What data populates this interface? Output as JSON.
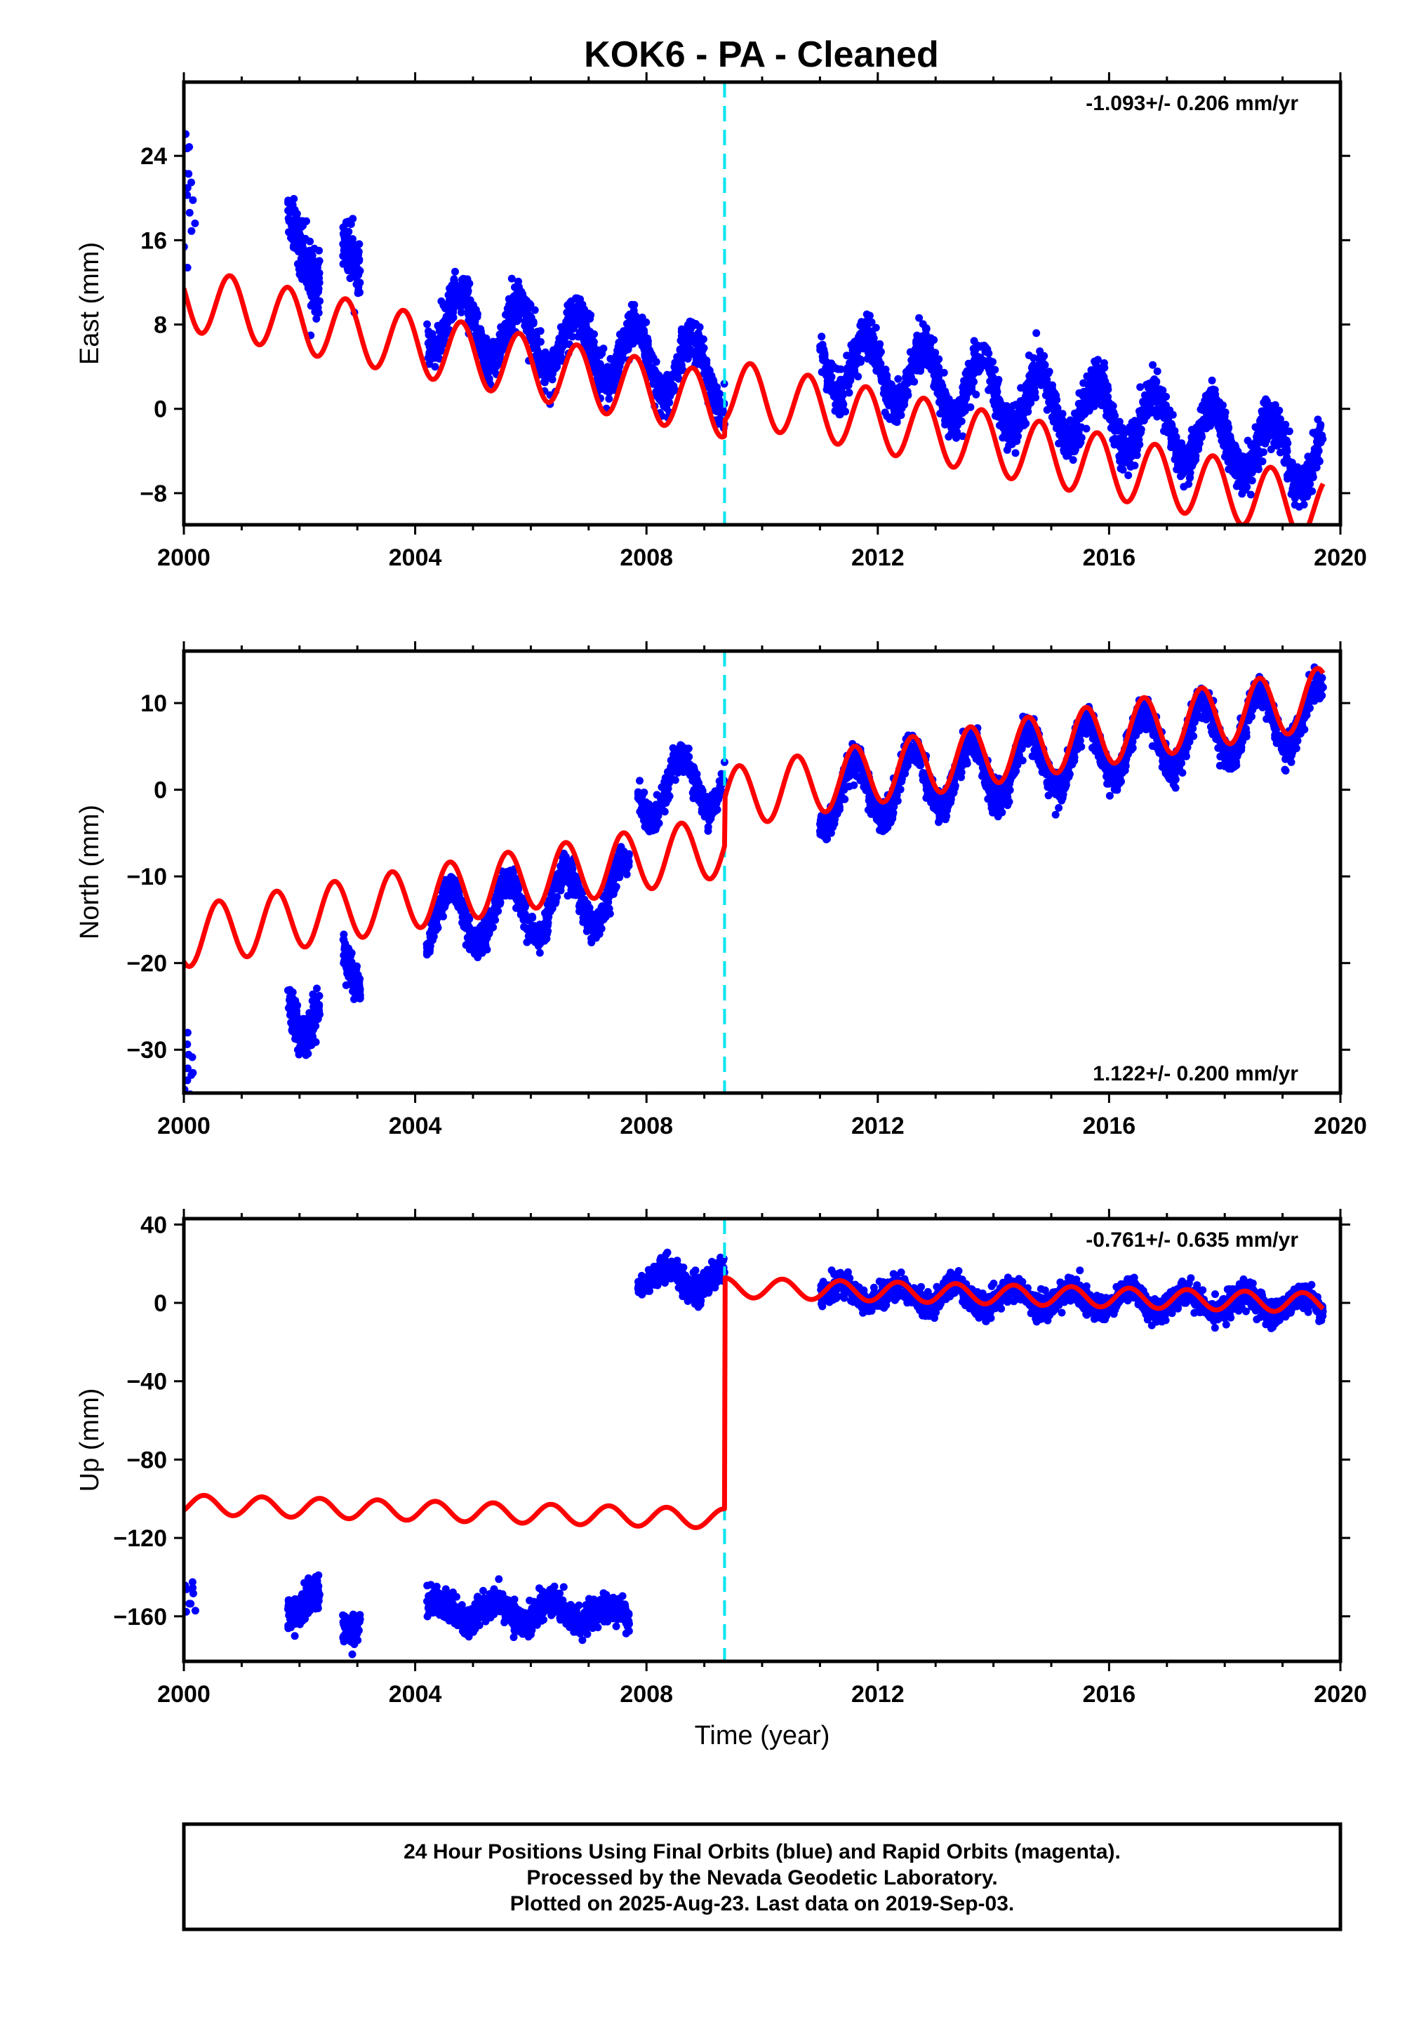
{
  "title": "KOK6  - PA - Cleaned",
  "colors": {
    "data_points": "#0000ff",
    "model_fit": "#ff0000",
    "event_line": "#00e5ee",
    "frame": "#000000"
  },
  "chart_data": [
    {
      "type": "scatter",
      "name": "east",
      "ylabel": "East (mm)",
      "xlabel": "",
      "xlim": [
        2000.0,
        2020.0
      ],
      "ylim": [
        -11,
        31
      ],
      "xticks": [
        2000,
        2004,
        2008,
        2012,
        2016,
        2020
      ],
      "yticks": [
        -8,
        0,
        8,
        16,
        24
      ],
      "ytick_labels": [
        "−8",
        "0",
        "8",
        "16",
        "24"
      ],
      "rate_text": "-1.093+/- 0.206 mm/yr",
      "rate_position": "top-right",
      "event_line_x": 2009.35,
      "data_segments": [
        {
          "x": [
            2000.0,
            2000.2
          ],
          "center": 22,
          "trend": -1.093,
          "amp": 3,
          "noise": 5,
          "n": 14
        },
        {
          "x": [
            2001.8,
            2002.35
          ],
          "center": 15,
          "trend": -1.093,
          "amp": 3,
          "noise": 2.5,
          "n": 200
        },
        {
          "x": [
            2002.75,
            2003.05
          ],
          "center": 12.5,
          "trend": -1.093,
          "amp": 3,
          "noise": 2.2,
          "n": 120
        },
        {
          "x": [
            2004.2,
            2009.35
          ],
          "center": 6.0,
          "trend": -1.093,
          "amp": 3,
          "noise": 1.8,
          "n": 1300
        },
        {
          "x": [
            2011.0,
            2019.7
          ],
          "center": 0.0,
          "trend": -1.093,
          "amp": 3,
          "noise": 1.8,
          "n": 2200
        }
      ],
      "model": {
        "x0": 2000.0,
        "y0": 10.5,
        "trend": -1.093,
        "amp": 3,
        "phase": 2000.55,
        "offsets": [
          {
            "x": 2009.35,
            "dy": 1.5
          }
        ],
        "xrange": [
          2000.0,
          2019.7
        ]
      }
    },
    {
      "type": "scatter",
      "name": "north",
      "ylabel": "North (mm)",
      "xlabel": "",
      "xlim": [
        2000.0,
        2020.0
      ],
      "ylim": [
        -35,
        16
      ],
      "xticks": [
        2000,
        2004,
        2008,
        2012,
        2016,
        2020
      ],
      "yticks": [
        -30,
        -20,
        -10,
        0,
        10
      ],
      "ytick_labels": [
        "−30",
        "−20",
        "−10",
        "0",
        "10"
      ],
      "rate_text": "1.122+/- 0.200 mm/yr",
      "rate_position": "bottom-right",
      "event_line_x": 2009.35,
      "data_segments": [
        {
          "x": [
            2000.0,
            2000.2
          ],
          "center": -29,
          "trend": 1.122,
          "amp": 3.5,
          "noise": 4,
          "n": 10
        },
        {
          "x": [
            2001.8,
            2002.35
          ],
          "center": -25,
          "trend": 1.122,
          "amp": 3.5,
          "noise": 2.2,
          "n": 200
        },
        {
          "x": [
            2002.75,
            2003.05
          ],
          "center": -20,
          "trend": 1.122,
          "amp": 3.5,
          "noise": 1.8,
          "n": 120
        },
        {
          "x": [
            2004.2,
            2007.7
          ],
          "center": -13.5,
          "trend": 1.122,
          "amp": 3.5,
          "noise": 1.6,
          "n": 900
        },
        {
          "x": [
            2007.85,
            2009.35
          ],
          "center": 0.5,
          "trend": 1.122,
          "amp": 3.5,
          "noise": 1.5,
          "n": 350
        },
        {
          "x": [
            2011.0,
            2019.7
          ],
          "center": 4.0,
          "trend": 1.122,
          "amp": 3.5,
          "noise": 1.6,
          "n": 2200
        }
      ],
      "model": {
        "x0": 2000.0,
        "y0": -17.0,
        "trend": 1.122,
        "amp": 3.5,
        "phase": 2000.35,
        "offsets": [
          {
            "x": 2009.35,
            "dy": 5.5
          }
        ],
        "xrange": [
          2000.0,
          2019.7
        ]
      }
    },
    {
      "type": "scatter",
      "name": "up",
      "ylabel": "Up (mm)",
      "xlabel": "Time (year)",
      "xlim": [
        2000.0,
        2020.0
      ],
      "ylim": [
        -183,
        43
      ],
      "xticks": [
        2000,
        2004,
        2008,
        2012,
        2016,
        2020
      ],
      "yticks": [
        -160,
        -120,
        -80,
        -40,
        0,
        40
      ],
      "ytick_labels": [
        "−160",
        "−120",
        "−80",
        "−40",
        "0",
        "40"
      ],
      "rate_text": "-0.761+/- 0.635 mm/yr",
      "rate_position": "top-right",
      "event_line_x": 2009.35,
      "data_segments": [
        {
          "x": [
            2000.0,
            2000.2
          ],
          "center": -150,
          "trend": -0.761,
          "amp": 5,
          "noise": 10,
          "n": 10
        },
        {
          "x": [
            2001.8,
            2002.35
          ],
          "center": -153,
          "trend": -0.761,
          "amp": 5,
          "noise": 7,
          "n": 200
        },
        {
          "x": [
            2002.75,
            2003.05
          ],
          "center": -162,
          "trend": -0.761,
          "amp": 5,
          "noise": 7,
          "n": 120
        },
        {
          "x": [
            2004.2,
            2007.7
          ],
          "center": -158,
          "trend": -0.761,
          "amp": 5,
          "noise": 6,
          "n": 1000
        },
        {
          "x": [
            2007.85,
            2009.35
          ],
          "center": 12,
          "trend": -0.761,
          "amp": 5,
          "noise": 5.5,
          "n": 400
        },
        {
          "x": [
            2011.0,
            2019.7
          ],
          "center": 2,
          "trend": -0.761,
          "amp": 5,
          "noise": 5.5,
          "n": 2200
        }
      ],
      "model": {
        "x0": 2000.0,
        "y0": -103.0,
        "trend": -0.761,
        "amp": 5,
        "phase": 2000.1,
        "offsets": [
          {
            "x": 2009.35,
            "dy": 118
          }
        ],
        "xrange": [
          2000.0,
          2019.7
        ]
      }
    }
  ],
  "footer": {
    "line1": "24 Hour Positions Using Final Orbits (blue) and Rapid Orbits (magenta).",
    "line2": "Processed by the Nevada Geodetic Laboratory.",
    "line3": "Plotted on 2025-Aug-23. Last data on 2019-Sep-03."
  }
}
